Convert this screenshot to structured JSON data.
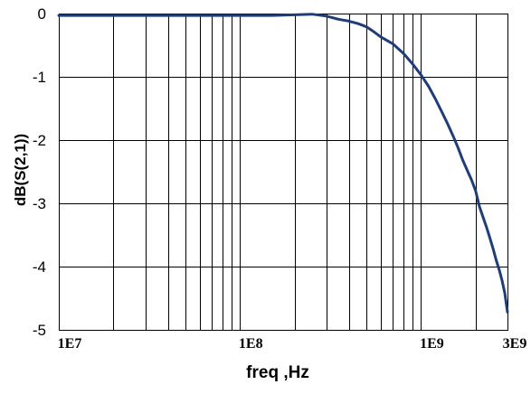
{
  "chart_data": {
    "type": "line",
    "xlabel": "freq ,Hz",
    "ylabel": "dB(S(2,1))",
    "x_scale": "log",
    "xlim": [
      10000000.0,
      3000000000.0
    ],
    "ylim": [
      -5,
      0
    ],
    "x_ticks": [
      10000000.0,
      100000000.0,
      1000000000.0,
      3000000000.0
    ],
    "x_tick_labels": [
      "1E7",
      "1E8",
      "1E9",
      "3E9"
    ],
    "y_ticks": [
      0,
      -1,
      -2,
      -3,
      -4,
      -5
    ],
    "y_tick_labels": [
      "0",
      "-1",
      "-2",
      "-3",
      "-4",
      "-5"
    ],
    "grid": true,
    "grid_minor_x": true,
    "legend": "none",
    "grid_color": "#000000",
    "series": [
      {
        "color": "#1f3d78",
        "x": [
          10000000.0,
          30000000.0,
          100000000.0,
          150000000.0,
          200000000.0,
          250000000.0,
          300000000.0,
          350000000.0,
          400000000.0,
          450000000.0,
          500000000.0,
          550000000.0,
          600000000.0,
          700000000.0,
          800000000.0,
          900000000.0,
          1000000000.0,
          1100000000.0,
          1200000000.0,
          1300000000.0,
          1400000000.0,
          1500000000.0,
          1600000000.0,
          1700000000.0,
          1800000000.0,
          1900000000.0,
          2000000000.0,
          2100000000.0,
          2200000000.0,
          2300000000.0,
          2400000000.0,
          2500000000.0,
          2600000000.0,
          2700000000.0,
          2800000000.0,
          2900000000.0,
          3000000000.0
        ],
        "y": [
          -0.03,
          -0.03,
          -0.03,
          -0.03,
          -0.02,
          -0.01,
          -0.04,
          -0.09,
          -0.12,
          -0.16,
          -0.21,
          -0.29,
          -0.37,
          -0.48,
          -0.63,
          -0.8,
          -0.97,
          -1.15,
          -1.35,
          -1.55,
          -1.74,
          -1.93,
          -2.12,
          -2.32,
          -2.48,
          -2.63,
          -2.8,
          -3.05,
          -3.22,
          -3.38,
          -3.55,
          -3.72,
          -3.9,
          -4.05,
          -4.22,
          -4.42,
          -4.72
        ]
      }
    ]
  }
}
